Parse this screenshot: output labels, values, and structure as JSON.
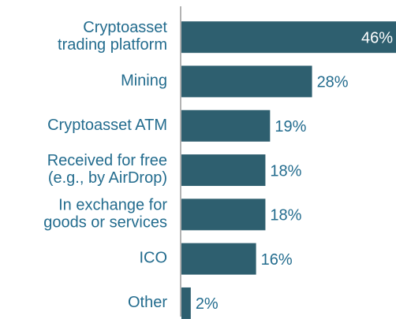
{
  "chart_data": {
    "type": "bar",
    "orientation": "horizontal",
    "categories": [
      "Cryptoasset\ntrading platform",
      "Mining",
      "Cryptoasset ATM",
      "Received for free\n(e.g., by AirDrop)",
      "In exchange for\ngoods or services",
      "ICO",
      "Other"
    ],
    "values": [
      46,
      28,
      19,
      18,
      18,
      16,
      2
    ],
    "value_labels": [
      "46%",
      "28%",
      "19%",
      "18%",
      "18%",
      "16%",
      "2%"
    ],
    "color": "#2e5f6f"
  }
}
